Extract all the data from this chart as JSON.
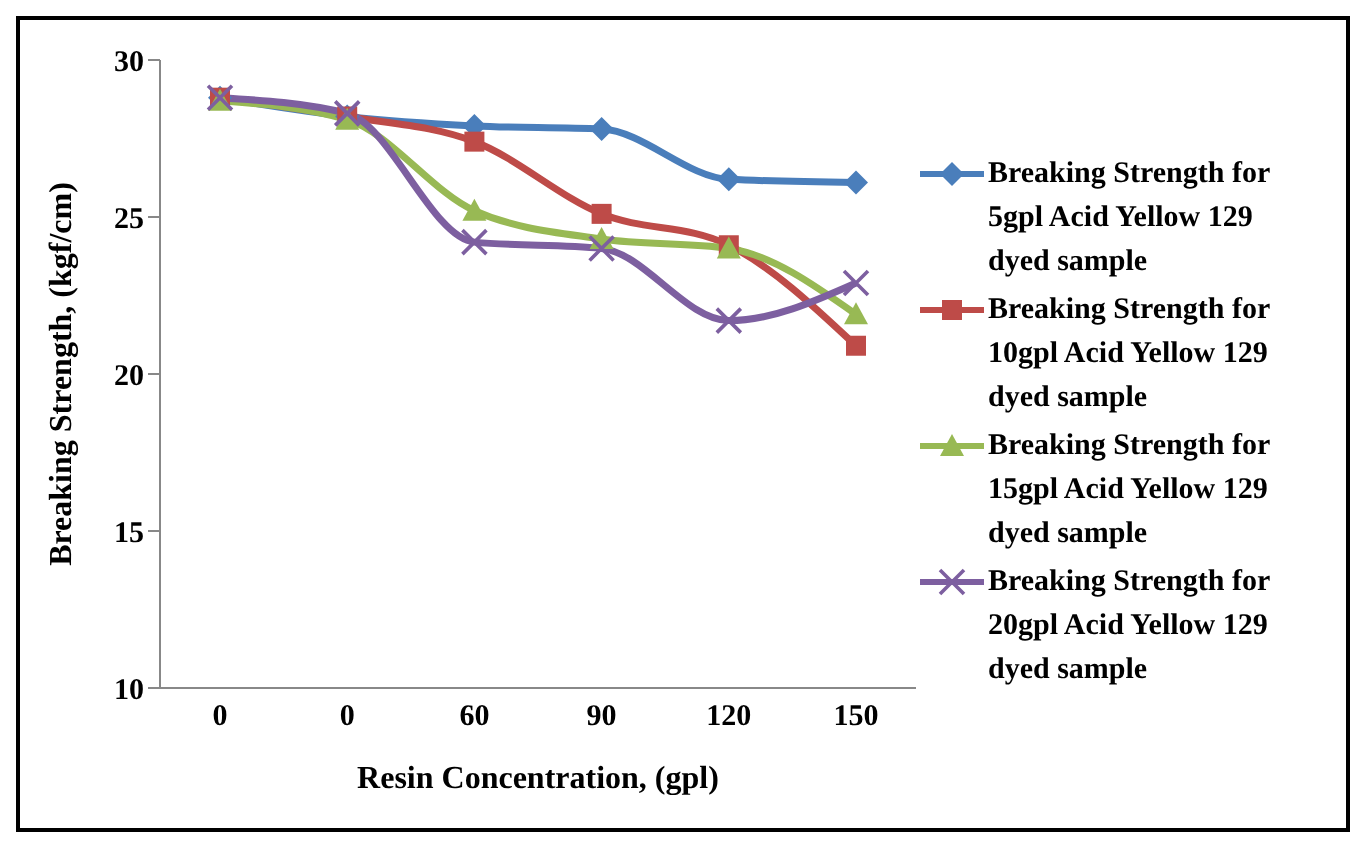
{
  "chart_data": {
    "type": "line",
    "xlabel": "Resin Concentration, (gpl)",
    "ylabel": "Breaking Strength, (kgf/cm)",
    "categories": [
      "0",
      "0",
      "60",
      "90",
      "120",
      "150"
    ],
    "ylim": [
      10,
      30
    ],
    "yticks": [
      10,
      15,
      20,
      25,
      30
    ],
    "grid": false,
    "legend": "right",
    "series": [
      {
        "name": "Breaking Strength for 5gpl Acid Yellow 129 dyed sample",
        "color": "#4a7ebb",
        "marker": "diamond",
        "values": [
          28.8,
          28.2,
          27.9,
          27.8,
          26.2,
          26.1
        ]
      },
      {
        "name": "Breaking Strength for 10gpl Acid Yellow 129 dyed sample",
        "color": "#be4b48",
        "marker": "square",
        "values": [
          28.8,
          28.2,
          27.4,
          25.1,
          24.1,
          20.9
        ]
      },
      {
        "name": "Breaking Strength for 15gpl Acid Yellow 129 dyed sample",
        "color": "#98b954",
        "marker": "triangle",
        "values": [
          28.7,
          28.1,
          25.2,
          24.3,
          24.0,
          21.9
        ]
      },
      {
        "name": "Breaking Strength for 20gpl Acid Yellow 129 dyed sample",
        "color": "#7d5fa0",
        "marker": "cross",
        "values": [
          28.8,
          28.3,
          24.2,
          24.0,
          21.7,
          22.9
        ]
      }
    ]
  }
}
